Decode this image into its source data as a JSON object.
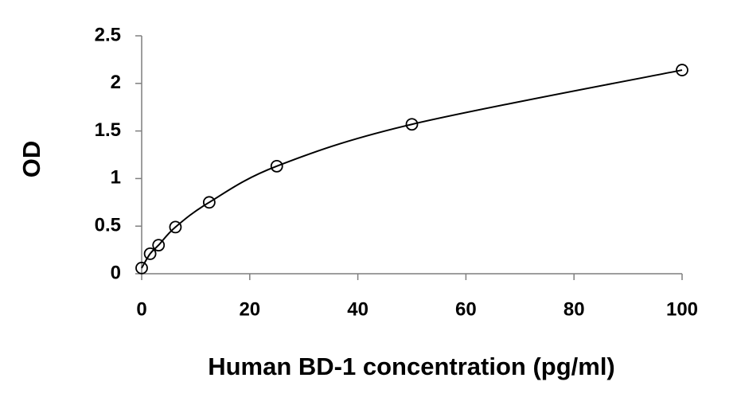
{
  "chart_data": {
    "type": "scatter",
    "x_label": "Human BD-1 concentration (pg/ml)",
    "y_label": "OD",
    "x": [
      0,
      1.5625,
      3.125,
      6.25,
      12.5,
      25,
      50,
      100
    ],
    "values": [
      0.06,
      0.21,
      0.3,
      0.49,
      0.75,
      1.13,
      1.57,
      2.14
    ],
    "color": "#000000",
    "smooth_line": true,
    "xlim": [
      0,
      100
    ],
    "xticks": [
      0,
      20,
      40,
      60,
      80,
      100
    ],
    "ylim": [
      0,
      2.5
    ],
    "yticks": [
      0,
      0.5,
      1,
      1.5,
      2,
      2.5
    ],
    "grid": false
  }
}
